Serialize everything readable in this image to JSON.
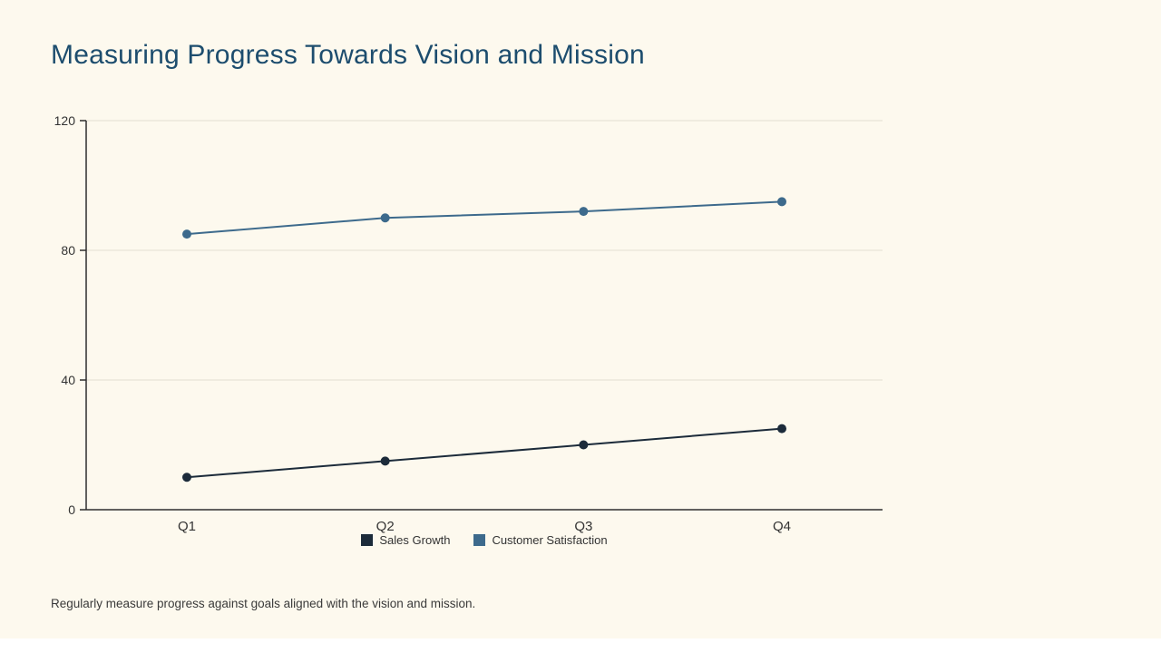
{
  "chart_data": {
    "type": "line",
    "title": "Measuring Progress Towards Vision and Mission",
    "note": "Regularly measure progress against goals aligned with the vision and mission.",
    "categories": [
      "Q1",
      "Q2",
      "Q3",
      "Q4"
    ],
    "series": [
      {
        "name": "Sales Growth",
        "values": [
          10,
          15,
          20,
          25
        ],
        "color": "#1c2b3a"
      },
      {
        "name": "Customer Satisfaction",
        "values": [
          85,
          90,
          92,
          95
        ],
        "color": "#3d6a8c"
      }
    ],
    "ylim": [
      0,
      120
    ],
    "yticks": [
      0,
      40,
      80,
      120
    ],
    "grid": true,
    "legend_position": "bottom",
    "colors": {
      "background": "#fdf9ee",
      "title": "#1d4d6e",
      "axis": "#2e2e2e",
      "gridline": "#e3dfd3",
      "tick_label": "#333333"
    }
  }
}
